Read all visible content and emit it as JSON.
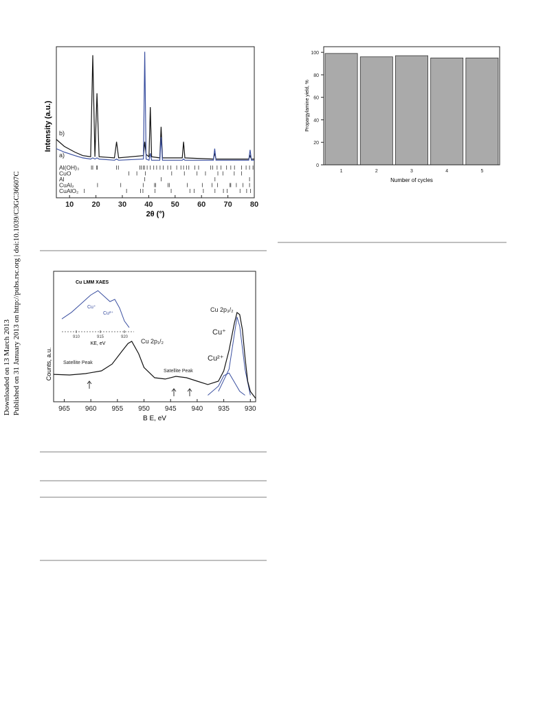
{
  "sidebar": {
    "line1": "Downloaded on 13 March 2013",
    "line2": "Published on 31 January 2013 on http://pubs.rsc.org | doi:10.1039/C3GC36607C"
  },
  "chart_data": [
    {
      "type": "line",
      "xlabel": "2θ (°)",
      "ylabel": "Intensity (a.u.)",
      "x": [
        5,
        8,
        12,
        15,
        18,
        18.8,
        19.6,
        20.4,
        21.2,
        27,
        27.8,
        28.6,
        38,
        38.5,
        39,
        40.1,
        40.6,
        41.1,
        44.2,
        44.7,
        45.2,
        52.7,
        53.2,
        53.7,
        64.5,
        65,
        65.5,
        77.9,
        78.4,
        78.9,
        80
      ],
      "series": [
        {
          "name": "b)",
          "color": "#111111",
          "values": [
            22,
            16,
            11,
            8,
            7,
            95,
            7,
            62,
            7,
            6,
            20,
            6,
            8,
            20,
            9,
            7,
            50,
            7,
            6,
            33,
            6,
            6,
            20,
            6,
            5,
            10,
            5,
            5,
            8,
            5,
            5
          ]
        },
        {
          "name": "a)",
          "color": "#3a4fa0",
          "values": [
            14,
            11,
            8,
            6,
            5,
            6,
            5,
            6,
            5,
            4,
            5,
            4,
            5,
            98,
            5,
            4,
            10,
            4,
            4,
            24,
            4,
            4,
            5,
            4,
            4,
            14,
            4,
            4,
            13,
            4,
            4
          ]
        }
      ],
      "xlim": [
        5,
        80
      ],
      "xticks": [
        10,
        20,
        30,
        40,
        50,
        60,
        70,
        80
      ],
      "ylim": [
        0,
        100
      ],
      "reference_patterns": [
        {
          "name": "Al(OH)₃",
          "positions": [
            18.3,
            18.8,
            20.3,
            20.5,
            27.8,
            28.5,
            36.6,
            37.2,
            37.9,
            38.4,
            39.4,
            40.6,
            41.9,
            43,
            44.3,
            45.5,
            47.2,
            48.4,
            50.6,
            52.2,
            53.2,
            54.3,
            55.2,
            57.5,
            58.9,
            63.5,
            64.2,
            65.9,
            67.4,
            69.5,
            71.1,
            72.5,
            75.2,
            76.9,
            78.2,
            79.5
          ]
        },
        {
          "name": "CuO",
          "positions": [
            32.5,
            35.5,
            38.7,
            48.7,
            53.5,
            58.3,
            61.5,
            66.2,
            68.1,
            72.4,
            75.2
          ]
        },
        {
          "name": "Al",
          "positions": [
            38.5,
            44.7,
            65.1,
            78.2
          ]
        },
        {
          "name": "CuAl₂",
          "positions": [
            20.6,
            29.4,
            37.9,
            42.2,
            42.6,
            47.3,
            47.8,
            54.6,
            60.3,
            64,
            66.1,
            70.8,
            71.1,
            73.2,
            75.7,
            78.2
          ]
        },
        {
          "name": "CuAlO₂",
          "positions": [
            15.6,
            31.6,
            36.9,
            37.8,
            42.4,
            48.5,
            55.6,
            57.2,
            60.7,
            65.1,
            68.3,
            69.7,
            74.6,
            77.1,
            78.6
          ]
        }
      ]
    },
    {
      "type": "line",
      "xlabel": "B E, eV",
      "ylabel": "Counts, a.u.",
      "x": [
        967,
        964,
        961,
        958,
        956,
        954,
        953,
        952.3,
        951,
        950,
        948,
        946,
        944,
        942,
        940,
        938,
        936,
        935,
        934,
        933.5,
        933,
        932.5,
        932,
        931.5,
        931,
        930.5,
        930,
        929
      ],
      "series": [
        {
          "color": "#111111",
          "values": [
            21,
            20.5,
            21.6,
            23.7,
            28.9,
            39.5,
            44.7,
            46.3,
            36.8,
            26.3,
            18.4,
            17.4,
            19.5,
            18.4,
            15.8,
            13.2,
            15.8,
            23.7,
            39.5,
            50,
            60.5,
            68.4,
            66.8,
            55.3,
            34.2,
            15.8,
            7.9,
            2.6
          ]
        }
      ],
      "fits": [
        {
          "color": "#3a4fa0",
          "x": [
            936,
            934,
            933,
            932.5,
            932,
            931,
            930
          ],
          "values": [
            8,
            25,
            52,
            65,
            58,
            25,
            5
          ]
        },
        {
          "color": "#3a4fa0",
          "x": [
            938,
            936,
            935,
            934,
            933,
            932,
            931
          ],
          "values": [
            5,
            12,
            20,
            22,
            15,
            8,
            5
          ]
        }
      ],
      "xlim": [
        967,
        929
      ],
      "xticks": [
        965,
        960,
        955,
        950,
        945,
        940,
        935,
        930
      ],
      "ylim": [
        0,
        100
      ],
      "annotations": [
        "Cu 2p₁/₂",
        "Satellite Peak",
        "Satellite Peak",
        "Cu 2p₃/₂",
        "Cu⁺",
        "Cu²⁺"
      ],
      "inset": {
        "title": "Cu LMM XAES",
        "xlabel": "KE, eV",
        "xlim": [
          907,
          922
        ],
        "xticks": [
          910,
          915,
          920
        ],
        "ylim": [
          0,
          100
        ],
        "x": [
          907,
          909,
          911,
          913,
          914.5,
          916,
          917,
          918,
          919,
          920,
          921
        ],
        "values": [
          25,
          40,
          60,
          80,
          90,
          75,
          65,
          70,
          50,
          20,
          5
        ],
        "labels": [
          "Cu⁺",
          "Cu²⁺"
        ]
      }
    },
    {
      "type": "bar",
      "xlabel": "Number of cycles",
      "ylabel": "Propargylamine yield, %",
      "categories": [
        "1",
        "2",
        "3",
        "4",
        "5"
      ],
      "values": [
        99,
        96,
        97,
        95,
        95
      ],
      "color": "#aaaaaa",
      "ylim": [
        0,
        105
      ],
      "yticks": [
        0,
        20,
        40,
        60,
        80,
        100
      ]
    }
  ]
}
